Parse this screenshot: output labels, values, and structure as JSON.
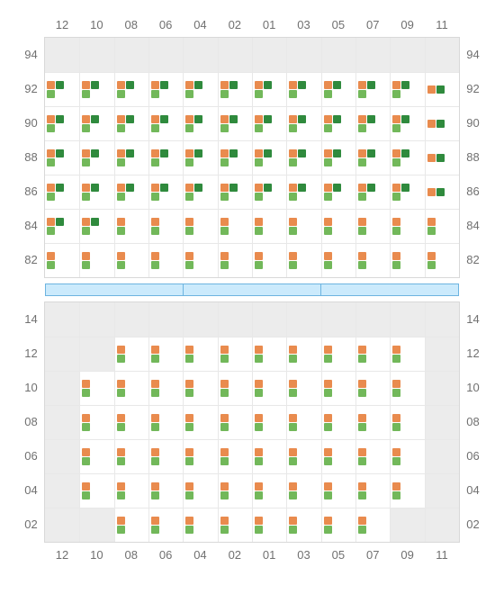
{
  "colors": {
    "orange": "#e98b4e",
    "green": "#72b85a",
    "darkgreen": "#2f8a3d",
    "empty_bg": "#ececec",
    "grid_border": "#d8d8d8",
    "cell_border": "#e8e8e8",
    "label_color": "#707070",
    "divider_fill": "#cbeafc",
    "divider_border": "#6db4e0"
  },
  "columns": [
    "12",
    "10",
    "08",
    "06",
    "04",
    "02",
    "01",
    "03",
    "05",
    "07",
    "09",
    "11"
  ],
  "top_grid": {
    "row_labels": [
      "94",
      "92",
      "90",
      "88",
      "86",
      "84",
      "82"
    ],
    "rows": [
      [
        "E",
        "E",
        "E",
        "E",
        "E",
        "E",
        "E",
        "E",
        "E",
        "E",
        "E",
        "E"
      ],
      [
        "ODG",
        "ODG",
        "ODG",
        "ODG",
        "ODG",
        "ODG",
        "ODG",
        "ODG",
        "ODG",
        "ODG",
        "ODG",
        "OD"
      ],
      [
        "ODG",
        "ODG",
        "ODG",
        "ODG",
        "ODG",
        "ODG",
        "ODG",
        "ODG",
        "ODG",
        "ODG",
        "ODG",
        "OD"
      ],
      [
        "ODG",
        "ODG",
        "ODG",
        "ODG",
        "ODG",
        "ODG",
        "ODG",
        "ODG",
        "ODG",
        "ODG",
        "ODG",
        "OD"
      ],
      [
        "ODG",
        "ODG",
        "ODG",
        "ODG",
        "ODG",
        "ODG",
        "ODG",
        "ODG",
        "ODG",
        "ODG",
        "ODG",
        "OD"
      ],
      [
        "ODG",
        "ODG",
        "OG",
        "OG",
        "OG",
        "OG",
        "OG",
        "OG",
        "OG",
        "OG",
        "OG",
        "OG"
      ],
      [
        "OG",
        "OG",
        "OG",
        "OG",
        "OG",
        "OG",
        "OG",
        "OG",
        "OG",
        "OG",
        "OG",
        "OG"
      ]
    ]
  },
  "divider_segments": 3,
  "bottom_grid": {
    "row_labels": [
      "14",
      "12",
      "10",
      "08",
      "06",
      "04",
      "02"
    ],
    "rows": [
      [
        "E",
        "E",
        "E",
        "E",
        "E",
        "E",
        "E",
        "E",
        "E",
        "E",
        "E",
        "E"
      ],
      [
        "E",
        "E",
        "OG",
        "OG",
        "OG",
        "OG",
        "OG",
        "OG",
        "OG",
        "OG",
        "OG",
        "E"
      ],
      [
        "E",
        "OG",
        "OG",
        "OG",
        "OG",
        "OG",
        "OG",
        "OG",
        "OG",
        "OG",
        "OG",
        "E"
      ],
      [
        "E",
        "OG",
        "OG",
        "OG",
        "OG",
        "OG",
        "OG",
        "OG",
        "OG",
        "OG",
        "OG",
        "E"
      ],
      [
        "E",
        "OG",
        "OG",
        "OG",
        "OG",
        "OG",
        "OG",
        "OG",
        "OG",
        "OG",
        "OG",
        "E"
      ],
      [
        "E",
        "OG",
        "OG",
        "OG",
        "OG",
        "OG",
        "OG",
        "OG",
        "OG",
        "OG",
        "OG",
        "E"
      ],
      [
        "E",
        "E",
        "OG",
        "OG",
        "OG",
        "OG",
        "OG",
        "OG",
        "OG",
        "OG",
        "E",
        "E"
      ]
    ]
  },
  "cell_patterns": {
    "E": [],
    "OG": [
      [
        "orange"
      ],
      [
        "green"
      ]
    ],
    "OD": [
      [
        "orange",
        "darkgreen"
      ]
    ],
    "ODG": [
      [
        "orange",
        "darkgreen"
      ],
      [
        "green"
      ]
    ]
  }
}
